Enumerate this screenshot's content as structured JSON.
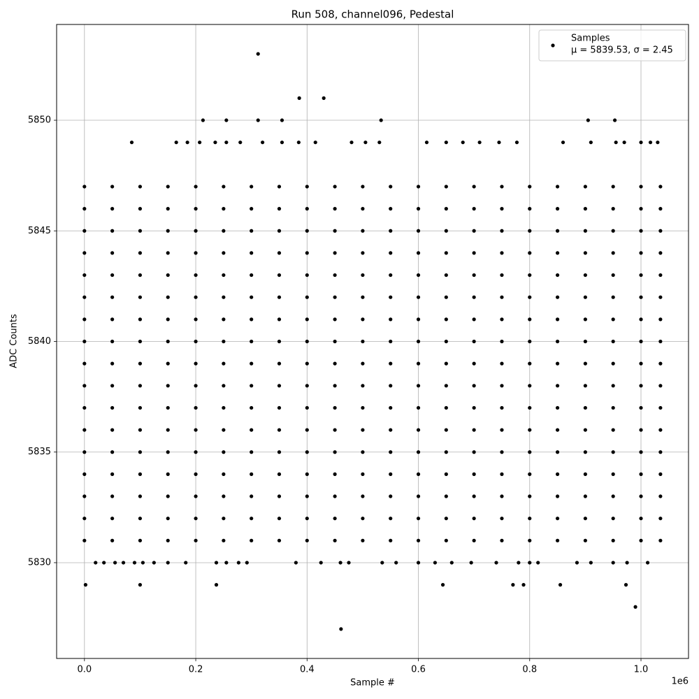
{
  "chart_data": {
    "type": "scatter",
    "title": "Run 508, channel096, Pedestal",
    "x_label": "Sample #",
    "y_label": "ADC Counts",
    "x_offset_label": "1e6",
    "xlim": [
      -50000,
      1085400
    ],
    "ylim": [
      5825.67,
      5854.33
    ],
    "xticks": [
      {
        "value": 0,
        "label": "0.0"
      },
      {
        "value": 200000,
        "label": "0.2"
      },
      {
        "value": 400000,
        "label": "0.4"
      },
      {
        "value": 600000,
        "label": "0.6"
      },
      {
        "value": 800000,
        "label": "0.8"
      },
      {
        "value": 1000000,
        "label": "1.0"
      }
    ],
    "yticks": [
      5830,
      5835,
      5840,
      5845,
      5850
    ],
    "grid": true,
    "legend": "upper right",
    "series": [
      {
        "name": "Samples",
        "stats_label": "μ = 5839.53, σ = 2.45",
        "color": "#000000",
        "x": [
          0,
          50000,
          100000,
          150000,
          200000,
          250000,
          300000,
          350000,
          400000,
          450000,
          500000,
          550000,
          600000,
          650000,
          700000,
          750000,
          800000,
          850000,
          900000,
          950000,
          1000000,
          1035000,
          0,
          50000,
          100000,
          150000,
          200000,
          250000,
          300000,
          350000,
          400000,
          450000,
          500000,
          550000,
          600000,
          650000,
          700000,
          750000,
          800000,
          850000,
          900000,
          950000,
          1000000,
          1035000,
          0,
          50000,
          100000,
          150000,
          200000,
          250000,
          300000,
          350000,
          400000,
          450000,
          500000,
          550000,
          600000,
          650000,
          700000,
          750000,
          800000,
          850000,
          900000,
          950000,
          1000000,
          1035000,
          0,
          50000,
          100000,
          150000,
          200000,
          250000,
          300000,
          350000,
          400000,
          450000,
          500000,
          550000,
          600000,
          650000,
          700000,
          750000,
          800000,
          850000,
          900000,
          950000,
          1000000,
          1035000,
          0,
          50000,
          100000,
          150000,
          200000,
          250000,
          300000,
          350000,
          400000,
          450000,
          500000,
          550000,
          600000,
          650000,
          700000,
          750000,
          800000,
          850000,
          900000,
          950000,
          1000000,
          1035000,
          0,
          50000,
          100000,
          150000,
          200000,
          250000,
          300000,
          350000,
          400000,
          450000,
          500000,
          550000,
          600000,
          650000,
          700000,
          750000,
          800000,
          850000,
          900000,
          950000,
          1000000,
          1035000,
          0,
          50000,
          100000,
          150000,
          200000,
          250000,
          300000,
          350000,
          400000,
          450000,
          500000,
          550000,
          600000,
          650000,
          700000,
          750000,
          800000,
          850000,
          900000,
          950000,
          1000000,
          1035000,
          0,
          50000,
          100000,
          150000,
          200000,
          250000,
          300000,
          350000,
          400000,
          450000,
          500000,
          550000,
          600000,
          650000,
          700000,
          750000,
          800000,
          850000,
          900000,
          950000,
          1000000,
          1035000,
          0,
          50000,
          100000,
          150000,
          200000,
          250000,
          300000,
          350000,
          400000,
          450000,
          500000,
          550000,
          600000,
          650000,
          700000,
          750000,
          800000,
          850000,
          900000,
          950000,
          1000000,
          1035000,
          0,
          50000,
          100000,
          150000,
          200000,
          250000,
          300000,
          350000,
          400000,
          450000,
          500000,
          550000,
          600000,
          650000,
          700000,
          750000,
          800000,
          850000,
          900000,
          950000,
          1000000,
          1035000,
          0,
          50000,
          100000,
          150000,
          200000,
          250000,
          300000,
          350000,
          400000,
          450000,
          500000,
          550000,
          600000,
          650000,
          700000,
          750000,
          800000,
          850000,
          900000,
          950000,
          1000000,
          1035000,
          0,
          50000,
          100000,
          150000,
          200000,
          250000,
          300000,
          350000,
          400000,
          450000,
          500000,
          550000,
          600000,
          650000,
          700000,
          750000,
          800000,
          850000,
          900000,
          950000,
          1000000,
          1035000,
          0,
          50000,
          100000,
          150000,
          200000,
          250000,
          300000,
          350000,
          400000,
          450000,
          500000,
          550000,
          600000,
          650000,
          700000,
          750000,
          800000,
          850000,
          900000,
          950000,
          1000000,
          1035000,
          0,
          50000,
          100000,
          150000,
          200000,
          250000,
          300000,
          350000,
          400000,
          450000,
          500000,
          550000,
          600000,
          650000,
          700000,
          750000,
          800000,
          850000,
          900000,
          950000,
          1000000,
          1035000,
          0,
          50000,
          100000,
          150000,
          200000,
          250000,
          300000,
          350000,
          400000,
          450000,
          500000,
          550000,
          600000,
          650000,
          700000,
          750000,
          800000,
          850000,
          900000,
          950000,
          1000000,
          1035000,
          0,
          50000,
          100000,
          150000,
          200000,
          250000,
          300000,
          350000,
          400000,
          450000,
          500000,
          550000,
          600000,
          650000,
          700000,
          750000,
          800000,
          850000,
          900000,
          950000,
          1000000,
          1035000,
          0,
          50000,
          100000,
          150000,
          200000,
          250000,
          300000,
          350000,
          400000,
          450000,
          500000,
          550000,
          600000,
          650000,
          700000,
          750000,
          800000,
          850000,
          900000,
          950000,
          1000000,
          1035000,
          312000,
          386000,
          430000,
          213000,
          255000,
          312000,
          355000,
          533000,
          905000,
          953000,
          85000,
          165000,
          185000,
          207000,
          235000,
          255000,
          280000,
          320000,
          355000,
          385000,
          415000,
          480000,
          505000,
          530000,
          615000,
          650000,
          680000,
          710000,
          745000,
          777000,
          860000,
          910000,
          955000,
          970000,
          1000000,
          1017000,
          1030000,
          20000,
          35000,
          55000,
          70000,
          90000,
          105000,
          125000,
          150000,
          182000,
          237000,
          255000,
          277000,
          292000,
          380000,
          425000,
          460000,
          475000,
          535000,
          560000,
          600000,
          630000,
          660000,
          695000,
          740000,
          780000,
          800000,
          815000,
          885000,
          910000,
          950000,
          975000,
          1012000,
          2000,
          100000,
          237000,
          644000,
          770000,
          789000,
          855000,
          973000,
          990000,
          461000
        ],
        "values": [
          5831,
          5831,
          5831,
          5831,
          5831,
          5831,
          5831,
          5831,
          5831,
          5831,
          5831,
          5831,
          5831,
          5831,
          5831,
          5831,
          5831,
          5831,
          5831,
          5831,
          5831,
          5831,
          5832,
          5832,
          5832,
          5832,
          5832,
          5832,
          5832,
          5832,
          5832,
          5832,
          5832,
          5832,
          5832,
          5832,
          5832,
          5832,
          5832,
          5832,
          5832,
          5832,
          5832,
          5832,
          5833,
          5833,
          5833,
          5833,
          5833,
          5833,
          5833,
          5833,
          5833,
          5833,
          5833,
          5833,
          5833,
          5833,
          5833,
          5833,
          5833,
          5833,
          5833,
          5833,
          5833,
          5833,
          5834,
          5834,
          5834,
          5834,
          5834,
          5834,
          5834,
          5834,
          5834,
          5834,
          5834,
          5834,
          5834,
          5834,
          5834,
          5834,
          5834,
          5834,
          5834,
          5834,
          5834,
          5834,
          5835,
          5835,
          5835,
          5835,
          5835,
          5835,
          5835,
          5835,
          5835,
          5835,
          5835,
          5835,
          5835,
          5835,
          5835,
          5835,
          5835,
          5835,
          5835,
          5835,
          5835,
          5835,
          5836,
          5836,
          5836,
          5836,
          5836,
          5836,
          5836,
          5836,
          5836,
          5836,
          5836,
          5836,
          5836,
          5836,
          5836,
          5836,
          5836,
          5836,
          5836,
          5836,
          5836,
          5836,
          5837,
          5837,
          5837,
          5837,
          5837,
          5837,
          5837,
          5837,
          5837,
          5837,
          5837,
          5837,
          5837,
          5837,
          5837,
          5837,
          5837,
          5837,
          5837,
          5837,
          5837,
          5837,
          5838,
          5838,
          5838,
          5838,
          5838,
          5838,
          5838,
          5838,
          5838,
          5838,
          5838,
          5838,
          5838,
          5838,
          5838,
          5838,
          5838,
          5838,
          5838,
          5838,
          5838,
          5838,
          5839,
          5839,
          5839,
          5839,
          5839,
          5839,
          5839,
          5839,
          5839,
          5839,
          5839,
          5839,
          5839,
          5839,
          5839,
          5839,
          5839,
          5839,
          5839,
          5839,
          5839,
          5839,
          5840,
          5840,
          5840,
          5840,
          5840,
          5840,
          5840,
          5840,
          5840,
          5840,
          5840,
          5840,
          5840,
          5840,
          5840,
          5840,
          5840,
          5840,
          5840,
          5840,
          5840,
          5840,
          5841,
          5841,
          5841,
          5841,
          5841,
          5841,
          5841,
          5841,
          5841,
          5841,
          5841,
          5841,
          5841,
          5841,
          5841,
          5841,
          5841,
          5841,
          5841,
          5841,
          5841,
          5841,
          5842,
          5842,
          5842,
          5842,
          5842,
          5842,
          5842,
          5842,
          5842,
          5842,
          5842,
          5842,
          5842,
          5842,
          5842,
          5842,
          5842,
          5842,
          5842,
          5842,
          5842,
          5842,
          5843,
          5843,
          5843,
          5843,
          5843,
          5843,
          5843,
          5843,
          5843,
          5843,
          5843,
          5843,
          5843,
          5843,
          5843,
          5843,
          5843,
          5843,
          5843,
          5843,
          5843,
          5843,
          5844,
          5844,
          5844,
          5844,
          5844,
          5844,
          5844,
          5844,
          5844,
          5844,
          5844,
          5844,
          5844,
          5844,
          5844,
          5844,
          5844,
          5844,
          5844,
          5844,
          5844,
          5844,
          5845,
          5845,
          5845,
          5845,
          5845,
          5845,
          5845,
          5845,
          5845,
          5845,
          5845,
          5845,
          5845,
          5845,
          5845,
          5845,
          5845,
          5845,
          5845,
          5845,
          5845,
          5845,
          5846,
          5846,
          5846,
          5846,
          5846,
          5846,
          5846,
          5846,
          5846,
          5846,
          5846,
          5846,
          5846,
          5846,
          5846,
          5846,
          5846,
          5846,
          5846,
          5846,
          5846,
          5846,
          5847,
          5847,
          5847,
          5847,
          5847,
          5847,
          5847,
          5847,
          5847,
          5847,
          5847,
          5847,
          5847,
          5847,
          5847,
          5847,
          5847,
          5847,
          5847,
          5847,
          5847,
          5847,
          5853,
          5851,
          5851,
          5850,
          5850,
          5850,
          5850,
          5850,
          5850,
          5850,
          5849,
          5849,
          5849,
          5849,
          5849,
          5849,
          5849,
          5849,
          5849,
          5849,
          5849,
          5849,
          5849,
          5849,
          5849,
          5849,
          5849,
          5849,
          5849,
          5849,
          5849,
          5849,
          5849,
          5849,
          5849,
          5849,
          5849,
          5830,
          5830,
          5830,
          5830,
          5830,
          5830,
          5830,
          5830,
          5830,
          5830,
          5830,
          5830,
          5830,
          5830,
          5830,
          5830,
          5830,
          5830,
          5830,
          5830,
          5830,
          5830,
          5830,
          5830,
          5830,
          5830,
          5830,
          5830,
          5830,
          5830,
          5830,
          5830,
          5829,
          5829,
          5829,
          5829,
          5829,
          5829,
          5829,
          5829,
          5828,
          5827
        ]
      }
    ]
  }
}
